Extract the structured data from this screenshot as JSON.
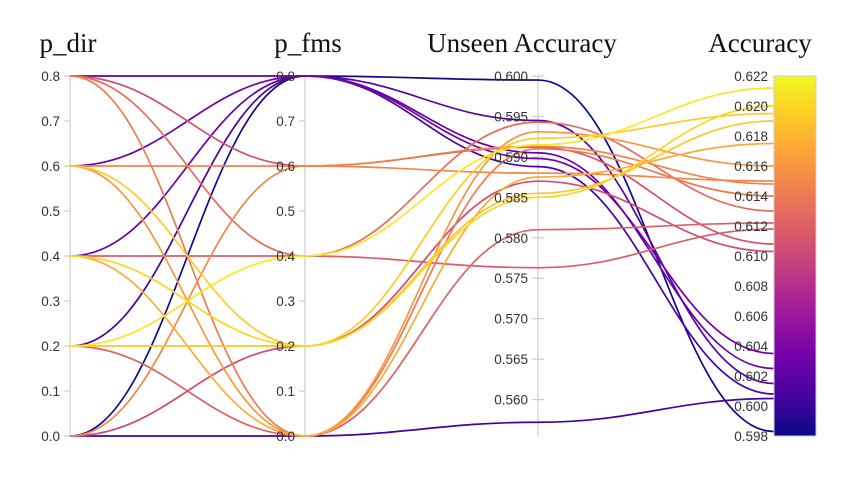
{
  "chart_data": {
    "type": "parallel_coordinates",
    "axes": [
      {
        "name": "p_dir",
        "range": [
          0,
          0.8
        ],
        "ticks": [
          0.0,
          0.1,
          0.2,
          0.3,
          0.4,
          0.5,
          0.6,
          0.7,
          0.8
        ],
        "tick_labels": [
          "0.0",
          "0.1",
          "0.2",
          "0.3",
          "0.4",
          "0.5",
          "0.6",
          "0.7",
          "0.8"
        ]
      },
      {
        "name": "p_fms",
        "range": [
          0,
          0.8
        ],
        "ticks": [
          0.0,
          0.1,
          0.2,
          0.3,
          0.4,
          0.5,
          0.6,
          0.7,
          0.8
        ],
        "tick_labels": [
          "0.0",
          "0.1",
          "0.2",
          "0.3",
          "0.4",
          "0.5",
          "0.6",
          "0.7",
          "0.8"
        ]
      },
      {
        "name": "Unseen Accuracy",
        "range": [
          0.5555,
          0.6
        ],
        "ticks": [
          0.56,
          0.565,
          0.57,
          0.575,
          0.58,
          0.585,
          0.59,
          0.595,
          0.6
        ],
        "tick_labels": [
          "0.560",
          "0.565",
          "0.570",
          "0.575",
          "0.580",
          "0.585",
          "0.590",
          "0.595",
          "0.600"
        ]
      },
      {
        "name": "Accuracy",
        "range": [
          0.598,
          0.622
        ],
        "ticks": [
          0.598,
          0.6,
          0.602,
          0.604,
          0.606,
          0.608,
          0.61,
          0.612,
          0.614,
          0.616,
          0.618,
          0.62,
          0.622
        ],
        "tick_labels": [
          "0.598",
          "0.600",
          "0.602",
          "0.604",
          "0.606",
          "0.608",
          "0.610",
          "0.612",
          "0.614",
          "0.616",
          "0.618",
          "0.620",
          "0.622"
        ]
      }
    ],
    "color_by": "Accuracy",
    "colormap": "plasma",
    "colormap_stops": [
      "#0d0887",
      "#46039f",
      "#7201a8",
      "#9c179e",
      "#bd3786",
      "#d8576b",
      "#ed7953",
      "#fb9f3a",
      "#fdca26",
      "#f0f921"
    ],
    "records": [
      {
        "p_dir": 0.0,
        "p_fms": 0.8,
        "unseen_accuracy": 0.5995,
        "accuracy": 0.5983
      },
      {
        "p_dir": 0.0,
        "p_fms": 0.0,
        "unseen_accuracy": 0.5572,
        "accuracy": 0.6005
      },
      {
        "p_dir": 0.0,
        "p_fms": 0.2,
        "unseen_accuracy": 0.587,
        "accuracy": 0.6103
      },
      {
        "p_dir": 0.0,
        "p_fms": 0.6,
        "unseen_accuracy": 0.588,
        "accuracy": 0.615
      },
      {
        "p_dir": 0.2,
        "p_fms": 0.8,
        "unseen_accuracy": 0.5888,
        "accuracy": 0.6008
      },
      {
        "p_dir": 0.2,
        "p_fms": 0.0,
        "unseen_accuracy": 0.581,
        "accuracy": 0.6122
      },
      {
        "p_dir": 0.2,
        "p_fms": 0.2,
        "unseen_accuracy": 0.5855,
        "accuracy": 0.619
      },
      {
        "p_dir": 0.2,
        "p_fms": 0.4,
        "unseen_accuracy": 0.5915,
        "accuracy": 0.6212
      },
      {
        "p_dir": 0.4,
        "p_fms": 0.8,
        "unseen_accuracy": 0.5905,
        "accuracy": 0.6025
      },
      {
        "p_dir": 0.4,
        "p_fms": 0.0,
        "unseen_accuracy": 0.5875,
        "accuracy": 0.6175
      },
      {
        "p_dir": 0.4,
        "p_fms": 0.4,
        "unseen_accuracy": 0.5763,
        "accuracy": 0.6118
      },
      {
        "p_dir": 0.4,
        "p_fms": 0.2,
        "unseen_accuracy": 0.585,
        "accuracy": 0.62
      },
      {
        "p_dir": 0.6,
        "p_fms": 0.8,
        "unseen_accuracy": 0.5898,
        "accuracy": 0.6035
      },
      {
        "p_dir": 0.6,
        "p_fms": 0.6,
        "unseen_accuracy": 0.5913,
        "accuracy": 0.6148
      },
      {
        "p_dir": 0.6,
        "p_fms": 0.2,
        "unseen_accuracy": 0.5923,
        "accuracy": 0.6195
      },
      {
        "p_dir": 0.6,
        "p_fms": 0.0,
        "unseen_accuracy": 0.5931,
        "accuracy": 0.616
      },
      {
        "p_dir": 0.8,
        "p_fms": 0.8,
        "unseen_accuracy": 0.5945,
        "accuracy": 0.6015
      },
      {
        "p_dir": 0.8,
        "p_fms": 0.6,
        "unseen_accuracy": 0.5912,
        "accuracy": 0.6108
      },
      {
        "p_dir": 0.8,
        "p_fms": 0.4,
        "unseen_accuracy": 0.5943,
        "accuracy": 0.613
      },
      {
        "p_dir": 0.8,
        "p_fms": 0.0,
        "unseen_accuracy": 0.591,
        "accuracy": 0.614
      }
    ]
  }
}
